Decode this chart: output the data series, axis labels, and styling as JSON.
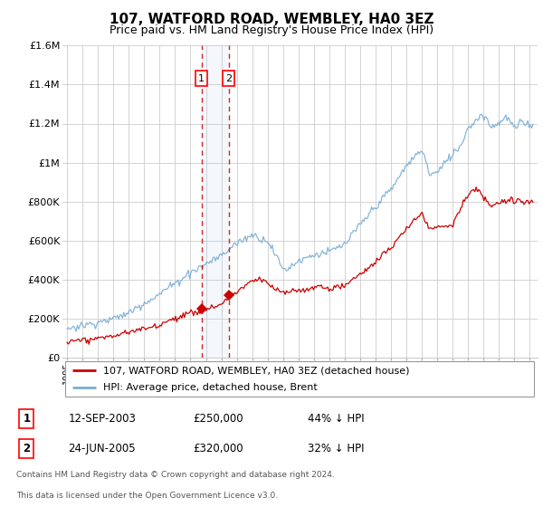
{
  "title": "107, WATFORD ROAD, WEMBLEY, HA0 3EZ",
  "subtitle": "Price paid vs. HM Land Registry's House Price Index (HPI)",
  "legend_line1": "107, WATFORD ROAD, WEMBLEY, HA0 3EZ (detached house)",
  "legend_line2": "HPI: Average price, detached house, Brent",
  "transaction1_date": "12-SEP-2003",
  "transaction1_price": "£250,000",
  "transaction1_hpi": "44% ↓ HPI",
  "transaction1_year": 2003.71,
  "transaction1_value": 250000,
  "transaction2_date": "24-JUN-2005",
  "transaction2_price": "£320,000",
  "transaction2_hpi": "32% ↓ HPI",
  "transaction2_year": 2005.48,
  "transaction2_value": 320000,
  "footer1": "Contains HM Land Registry data © Crown copyright and database right 2024.",
  "footer2": "This data is licensed under the Open Government Licence v3.0.",
  "red_color": "#cc0000",
  "blue_color": "#7aadd4",
  "background_color": "#ffffff",
  "grid_color": "#cccccc",
  "title_fontsize": 11,
  "subtitle_fontsize": 9,
  "ylim": [
    0,
    1600000
  ],
  "xlim": [
    1994.7,
    2025.5
  ],
  "yticks": [
    0,
    200000,
    400000,
    600000,
    800000,
    1000000,
    1200000,
    1400000,
    1600000
  ],
  "ylabels": [
    "£0",
    "£200K",
    "£400K",
    "£600K",
    "£800K",
    "£1M",
    "£1.2M",
    "£1.4M",
    "£1.6M"
  ]
}
